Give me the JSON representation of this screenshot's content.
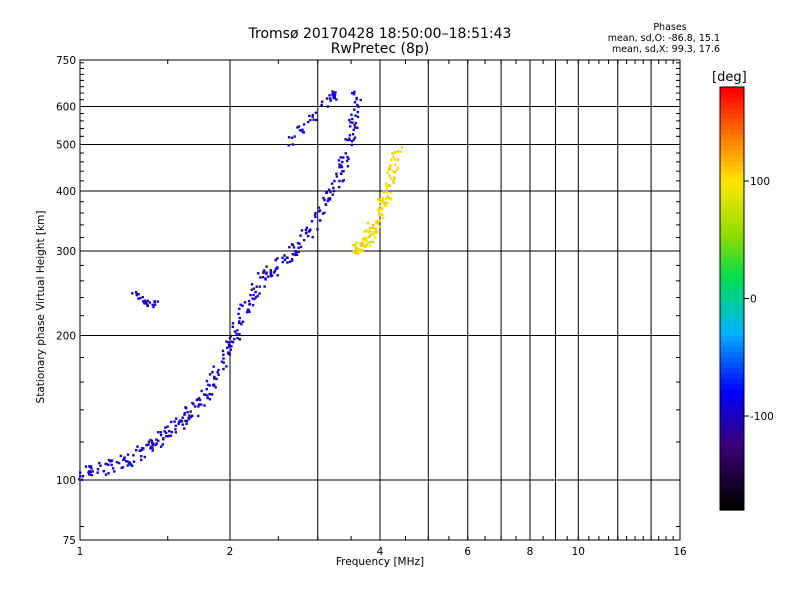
{
  "header": {
    "title_line1": "Tromsø 20170428 18:50:00–18:51:43",
    "title_line2": "RwPretec (8p)"
  },
  "stats": {
    "heading": "Phases",
    "line1": "mean, sd,O: -86.8, 15.1",
    "line2": "mean, sd,X:  99.3, 17.6"
  },
  "chart_data": {
    "type": "scatter",
    "xlabel": "Frequency [MHz]",
    "ylabel": "Stationary phase Virtual Height [km]",
    "xscale": "log",
    "yscale": "log",
    "xlim": [
      1,
      16
    ],
    "ylim": [
      75,
      750
    ],
    "x_ticks": [
      1,
      2,
      4,
      6,
      8,
      10,
      16
    ],
    "y_ticks": [
      75,
      100,
      200,
      300,
      400,
      500,
      600,
      750
    ],
    "x_minor_gridlines": [
      3,
      5,
      7,
      9,
      12,
      14
    ],
    "grid": true,
    "colorbar": {
      "label": "[deg]",
      "range": [
        -180,
        180
      ],
      "ticks": [
        -100,
        0,
        100
      ]
    },
    "series": [
      {
        "mode": "O",
        "phase_deg": -95,
        "trace": [
          [
            1.0,
            103
          ],
          [
            1.1,
            105
          ],
          [
            1.2,
            108
          ],
          [
            1.3,
            112
          ],
          [
            1.4,
            118
          ],
          [
            1.5,
            125
          ],
          [
            1.6,
            132
          ],
          [
            1.7,
            140
          ],
          [
            1.8,
            152
          ],
          [
            1.9,
            168
          ],
          [
            2.0,
            190
          ],
          [
            2.1,
            215
          ],
          [
            2.2,
            240
          ],
          [
            2.35,
            265
          ],
          [
            2.5,
            280
          ],
          [
            2.7,
            300
          ],
          [
            2.9,
            330
          ],
          [
            3.1,
            370
          ],
          [
            3.3,
            420
          ],
          [
            3.45,
            480
          ],
          [
            3.55,
            550
          ],
          [
            3.6,
            640
          ]
        ],
        "spur_upper": [
          [
            2.6,
            505
          ],
          [
            2.8,
            540
          ],
          [
            3.0,
            590
          ],
          [
            3.2,
            630
          ],
          [
            3.35,
            645
          ]
        ],
        "cluster_1_3MHz": [
          [
            1.28,
            245
          ],
          [
            1.32,
            238
          ],
          [
            1.36,
            234
          ],
          [
            1.4,
            232
          ],
          [
            1.44,
            234
          ]
        ]
      },
      {
        "mode": "X",
        "phase_deg": 100,
        "trace": [
          [
            3.55,
            300
          ],
          [
            3.65,
            305
          ],
          [
            3.75,
            315
          ],
          [
            3.85,
            330
          ],
          [
            3.95,
            350
          ],
          [
            4.05,
            375
          ],
          [
            4.15,
            400
          ],
          [
            4.25,
            440
          ],
          [
            4.35,
            490
          ]
        ]
      }
    ]
  }
}
